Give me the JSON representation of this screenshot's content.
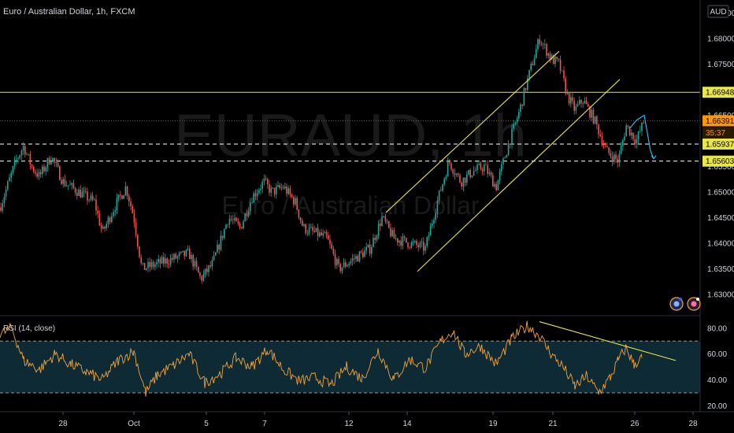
{
  "header": {
    "symbol_title": "Euro / Australian Dollar, 1h, FXCM",
    "currency_badge": "AUD"
  },
  "watermark": {
    "ticker": "EURAUD, 1h",
    "name": "Euro / Australian Dollar"
  },
  "price_tags": {
    "resistance": "1.66948",
    "last_price": "1.66391",
    "countdown": "35:37",
    "support_upper": "1.65937",
    "support_lower": "1.65603"
  },
  "rsi_panel": {
    "title": "RSI (14, close)"
  },
  "colors": {
    "background": "#000000",
    "up_candle": "#26a69a",
    "down_candle": "#ef5350",
    "drawing": "#e8e64a",
    "rsi_line": "#f7a334",
    "rsi_band": "#0e2a35",
    "projection": "#2ab7e0",
    "last_price": "#ff9800",
    "price_line": "#c63b2d"
  },
  "chart_data": [
    {
      "type": "candlestick",
      "title": "Euro / Australian Dollar, 1h, FXCM",
      "ylim": [
        1.626,
        1.6875
      ],
      "x_ticks": [
        "28",
        "Oct",
        "5",
        "7",
        "12",
        "14",
        "19",
        "21",
        "26",
        "28"
      ],
      "y_ticks": [
        "1.68500",
        "1.68000",
        "1.67500",
        "1.66500",
        "1.65500",
        "1.65000",
        "1.64500",
        "1.64000",
        "1.63500",
        "1.63000"
      ],
      "close_path": [
        [
          0,
          1.647
        ],
        [
          20,
          1.656
        ],
        [
          30,
          1.659
        ],
        [
          40,
          1.655
        ],
        [
          50,
          1.653
        ],
        [
          65,
          1.657
        ],
        [
          80,
          1.652
        ],
        [
          100,
          1.65
        ],
        [
          120,
          1.648
        ],
        [
          130,
          1.642
        ],
        [
          145,
          1.647
        ],
        [
          160,
          1.651
        ],
        [
          170,
          1.645
        ],
        [
          180,
          1.635
        ],
        [
          200,
          1.636
        ],
        [
          220,
          1.637
        ],
        [
          240,
          1.638
        ],
        [
          255,
          1.633
        ],
        [
          270,
          1.636
        ],
        [
          290,
          1.645
        ],
        [
          305,
          1.643
        ],
        [
          320,
          1.649
        ],
        [
          335,
          1.652
        ],
        [
          345,
          1.65
        ],
        [
          360,
          1.651
        ],
        [
          375,
          1.648
        ],
        [
          385,
          1.643
        ],
        [
          400,
          1.642
        ],
        [
          415,
          1.641
        ],
        [
          430,
          1.635
        ],
        [
          450,
          1.637
        ],
        [
          470,
          1.639
        ],
        [
          485,
          1.645
        ],
        [
          500,
          1.641
        ],
        [
          520,
          1.64
        ],
        [
          540,
          1.639
        ],
        [
          555,
          1.648
        ],
        [
          570,
          1.656
        ],
        [
          585,
          1.652
        ],
        [
          600,
          1.654
        ],
        [
          615,
          1.655
        ],
        [
          630,
          1.651
        ],
        [
          645,
          1.659
        ],
        [
          660,
          1.666
        ],
        [
          670,
          1.672
        ],
        [
          685,
          1.68
        ],
        [
          700,
          1.676
        ],
        [
          710,
          1.675
        ],
        [
          720,
          1.669
        ],
        [
          730,
          1.666
        ],
        [
          740,
          1.668
        ],
        [
          755,
          1.664
        ],
        [
          770,
          1.658
        ],
        [
          785,
          1.656
        ],
        [
          795,
          1.663
        ],
        [
          808,
          1.66
        ],
        [
          818,
          1.6639
        ]
      ],
      "horizontal_lines": [
        {
          "price": 1.66948,
          "style": "solid"
        },
        {
          "price": 1.66391,
          "style": "dotted"
        },
        {
          "price": 1.65937,
          "style": "dashed"
        },
        {
          "price": 1.65603,
          "style": "dashed"
        }
      ],
      "channel": [
        {
          "from": [
            490,
            1.646
          ],
          "to": [
            710,
            1.6775
          ]
        },
        {
          "from": [
            530,
            1.6345
          ],
          "to": [
            787,
            1.672
          ]
        }
      ],
      "projection": [
        [
          800,
          1.6625
        ],
        [
          808,
          1.664
        ],
        [
          818,
          1.665
        ],
        [
          826,
          1.658
        ],
        [
          830,
          1.6565
        ]
      ]
    },
    {
      "type": "line",
      "title": "RSI (14, close)",
      "ylim": [
        16,
        89
      ],
      "y_ticks": [
        "80.00",
        "60.00",
        "40.00",
        "20.00"
      ],
      "band": [
        30,
        70
      ],
      "x": [
        0,
        15,
        30,
        50,
        70,
        90,
        110,
        130,
        150,
        170,
        185,
        200,
        220,
        240,
        260,
        280,
        300,
        320,
        340,
        360,
        380,
        400,
        420,
        440,
        460,
        480,
        500,
        520,
        540,
        560,
        575,
        590,
        610,
        630,
        650,
        670,
        685,
        700,
        715,
        730,
        745,
        760,
        775,
        785,
        795,
        805,
        815
      ],
      "values": [
        75,
        80,
        55,
        48,
        60,
        52,
        46,
        40,
        55,
        62,
        30,
        44,
        51,
        60,
        38,
        45,
        57,
        50,
        64,
        48,
        39,
        42,
        36,
        50,
        41,
        63,
        40,
        56,
        49,
        70,
        78,
        60,
        66,
        52,
        72,
        82,
        74,
        60,
        50,
        35,
        43,
        30,
        42,
        55,
        65,
        52,
        57
      ],
      "trendline": {
        "from": [
          685,
          85
        ],
        "to": [
          858,
          55
        ]
      }
    }
  ]
}
